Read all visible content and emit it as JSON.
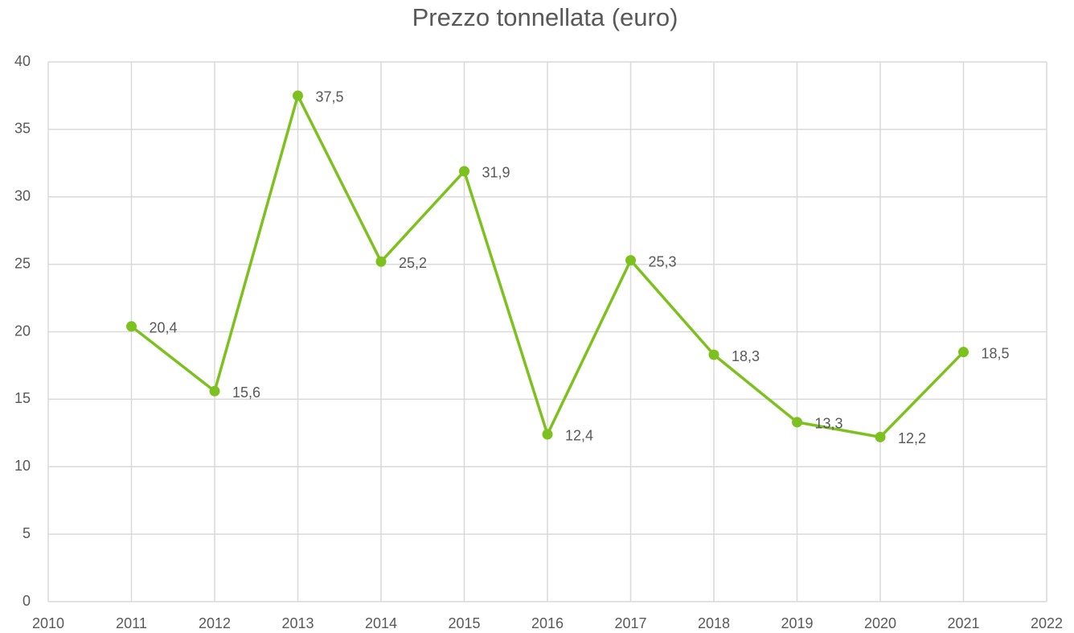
{
  "chart_data": {
    "type": "line",
    "title": "Prezzo tonnellata (euro)",
    "x": [
      2011,
      2012,
      2013,
      2014,
      2015,
      2016,
      2017,
      2018,
      2019,
      2020,
      2021
    ],
    "values": [
      20.4,
      15.6,
      37.5,
      25.2,
      31.9,
      12.4,
      25.3,
      18.3,
      13.3,
      12.2,
      18.5
    ],
    "value_labels": [
      "20,4",
      "15,6",
      "37,5",
      "25,2",
      "31,9",
      "12,4",
      "25,3",
      "18,3",
      "13,3",
      "12,2",
      "18,5"
    ],
    "color": "#7dc11f",
    "xlim": [
      2010,
      2022
    ],
    "xticks": [
      2010,
      2011,
      2012,
      2013,
      2014,
      2015,
      2016,
      2017,
      2018,
      2019,
      2020,
      2021,
      2022
    ],
    "ylim": [
      0,
      40
    ],
    "yticks": [
      0,
      5,
      10,
      15,
      20,
      25,
      30,
      35,
      40
    ],
    "grid": true
  }
}
